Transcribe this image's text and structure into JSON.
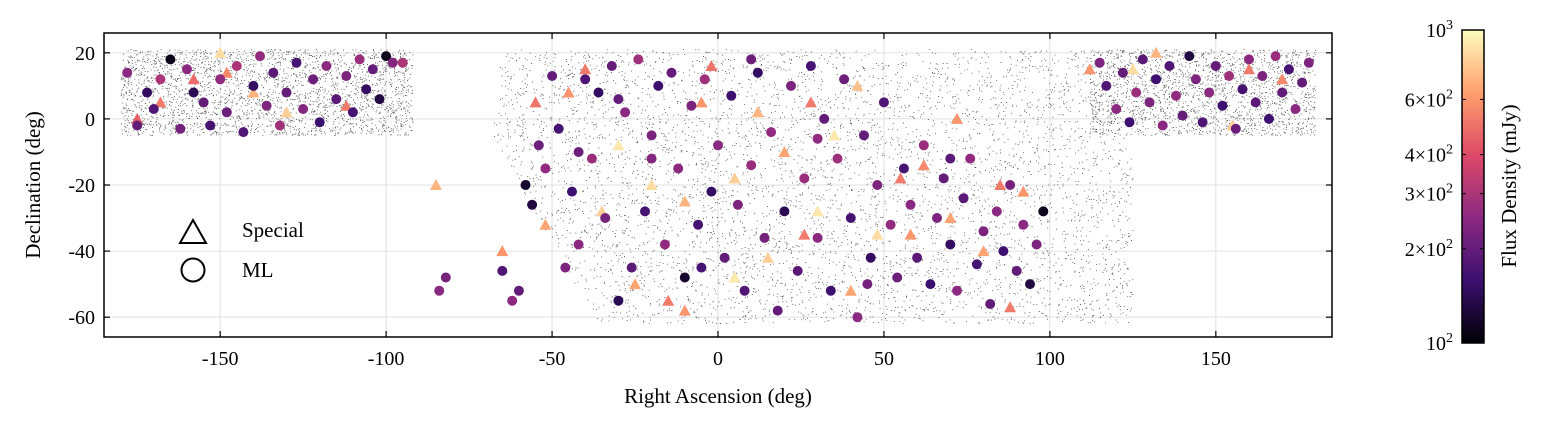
{
  "chart_data": {
    "type": "scatter",
    "xlabel": "Right Ascension (deg)",
    "ylabel": "Declination (deg)",
    "xlim": [
      -185,
      185
    ],
    "ylim": [
      -66,
      26
    ],
    "x_ticks": [
      -150,
      -100,
      -50,
      0,
      50,
      100,
      150
    ],
    "y_ticks": [
      20,
      0,
      -20,
      -40,
      -60
    ],
    "grid": true,
    "legend_position": "lower-left",
    "legend": [
      {
        "marker": "triangle",
        "label": "Special"
      },
      {
        "marker": "circle",
        "label": "ML"
      }
    ],
    "colorbar": {
      "label": "Flux Density (mJy)",
      "scale": "log",
      "range": [
        100,
        1000
      ],
      "colormap": "magma",
      "major_ticks": [
        {
          "value": 1000,
          "base": "10",
          "exp": "3"
        },
        {
          "value": 100,
          "base": "10",
          "exp": "2"
        }
      ],
      "minor_ticks": [
        {
          "value": 600,
          "base": "6×10",
          "exp": "2"
        },
        {
          "value": 400,
          "base": "4×10",
          "exp": "2"
        },
        {
          "value": 300,
          "base": "3×10",
          "exp": "2"
        },
        {
          "value": 200,
          "base": "2×10",
          "exp": "2"
        }
      ],
      "colors": [
        "#000004",
        "#3b0f70",
        "#8c2981",
        "#de4968",
        "#fe9f6d",
        "#fcfdbf"
      ]
    },
    "series": [
      {
        "name": "Special",
        "marker": "triangle",
        "points": [
          [
            -175,
            0,
            450
          ],
          [
            -168,
            5,
            520
          ],
          [
            -150,
            20,
            850
          ],
          [
            -148,
            14,
            560
          ],
          [
            -140,
            8,
            700
          ],
          [
            -130,
            2,
            800
          ],
          [
            -158,
            12,
            480
          ],
          [
            -112,
            4,
            520
          ],
          [
            -55,
            5,
            500
          ],
          [
            -45,
            8,
            600
          ],
          [
            -40,
            15,
            520
          ],
          [
            -30,
            -8,
            900
          ],
          [
            -20,
            -20,
            850
          ],
          [
            -10,
            -25,
            700
          ],
          [
            -5,
            5,
            600
          ],
          [
            -2,
            16,
            500
          ],
          [
            5,
            -18,
            800
          ],
          [
            12,
            2,
            700
          ],
          [
            20,
            -10,
            650
          ],
          [
            28,
            5,
            520
          ],
          [
            35,
            -5,
            900
          ],
          [
            42,
            10,
            750
          ],
          [
            55,
            -18,
            520
          ],
          [
            58,
            -35,
            600
          ],
          [
            62,
            -14,
            560
          ],
          [
            70,
            -30,
            650
          ],
          [
            72,
            0,
            600
          ],
          [
            85,
            -20,
            520
          ],
          [
            88,
            -57,
            520
          ],
          [
            92,
            -22,
            600
          ],
          [
            -65,
            -40,
            600
          ],
          [
            -52,
            -32,
            650
          ],
          [
            -15,
            -55,
            520
          ],
          [
            15,
            -42,
            800
          ],
          [
            30,
            -28,
            900
          ],
          [
            40,
            -52,
            650
          ],
          [
            112,
            15,
            600
          ],
          [
            125,
            15,
            850
          ],
          [
            132,
            20,
            700
          ],
          [
            155,
            -2,
            800
          ],
          [
            160,
            15,
            520
          ],
          [
            170,
            12,
            560
          ],
          [
            -10,
            -58,
            600
          ],
          [
            48,
            -35,
            850
          ],
          [
            80,
            -40,
            650
          ],
          [
            -35,
            -28,
            800
          ],
          [
            26,
            -35,
            520
          ],
          [
            -85,
            -20,
            700
          ],
          [
            -25,
            -50,
            650
          ],
          [
            5,
            -48,
            900
          ]
        ]
      },
      {
        "name": "ML",
        "marker": "circle",
        "points": [
          [
            -178,
            14,
            250
          ],
          [
            -175,
            -2,
            200
          ],
          [
            -172,
            8,
            150
          ],
          [
            -170,
            3,
            180
          ],
          [
            -168,
            12,
            300
          ],
          [
            -165,
            18,
            110
          ],
          [
            -162,
            -3,
            220
          ],
          [
            -160,
            15,
            250
          ],
          [
            -158,
            8,
            140
          ],
          [
            -155,
            5,
            200
          ],
          [
            -153,
            -2,
            170
          ],
          [
            -150,
            12,
            260
          ],
          [
            -148,
            2,
            210
          ],
          [
            -145,
            16,
            300
          ],
          [
            -143,
            -4,
            180
          ],
          [
            -140,
            10,
            150
          ],
          [
            -138,
            19,
            260
          ],
          [
            -136,
            4,
            230
          ],
          [
            -134,
            14,
            190
          ],
          [
            -132,
            -2,
            280
          ],
          [
            -130,
            8,
            200
          ],
          [
            -127,
            17,
            170
          ],
          [
            -125,
            3,
            240
          ],
          [
            -122,
            12,
            210
          ],
          [
            -120,
            -1,
            160
          ],
          [
            -118,
            16,
            250
          ],
          [
            -115,
            6,
            190
          ],
          [
            -112,
            13,
            230
          ],
          [
            -110,
            2,
            170
          ],
          [
            -108,
            18,
            270
          ],
          [
            -106,
            9,
            150
          ],
          [
            -104,
            15,
            200
          ],
          [
            -102,
            6,
            130
          ],
          [
            -100,
            19,
            110
          ],
          [
            -98,
            17,
            240
          ],
          [
            -95,
            17,
            300
          ],
          [
            -82,
            -48,
            220
          ],
          [
            -84,
            -52,
            250
          ],
          [
            -65,
            -46,
            180
          ],
          [
            -62,
            -55,
            250
          ],
          [
            -60,
            -52,
            200
          ],
          [
            -58,
            -20,
            120
          ],
          [
            -56,
            -26,
            130
          ],
          [
            -54,
            -8,
            210
          ],
          [
            -52,
            -15,
            260
          ],
          [
            -50,
            13,
            200
          ],
          [
            -48,
            -3,
            170
          ],
          [
            -46,
            -45,
            230
          ],
          [
            -44,
            -22,
            160
          ],
          [
            -42,
            -38,
            250
          ],
          [
            -40,
            12,
            180
          ],
          [
            -38,
            -12,
            270
          ],
          [
            -36,
            8,
            150
          ],
          [
            -34,
            -30,
            220
          ],
          [
            -32,
            16,
            200
          ],
          [
            -30,
            -55,
            140
          ],
          [
            -28,
            2,
            250
          ],
          [
            -26,
            -45,
            190
          ],
          [
            -24,
            18,
            280
          ],
          [
            -22,
            -28,
            170
          ],
          [
            -20,
            -5,
            230
          ],
          [
            -18,
            10,
            160
          ],
          [
            -16,
            -38,
            260
          ],
          [
            -14,
            14,
            200
          ],
          [
            -12,
            -15,
            250
          ],
          [
            -10,
            -48,
            120
          ],
          [
            -8,
            4,
            230
          ],
          [
            -6,
            -32,
            170
          ],
          [
            -4,
            12,
            280
          ],
          [
            -2,
            -22,
            150
          ],
          [
            0,
            -8,
            250
          ],
          [
            2,
            -42,
            200
          ],
          [
            4,
            7,
            160
          ],
          [
            6,
            -26,
            230
          ],
          [
            8,
            -52,
            180
          ],
          [
            10,
            -14,
            270
          ],
          [
            12,
            14,
            150
          ],
          [
            14,
            -36,
            220
          ],
          [
            16,
            -4,
            260
          ],
          [
            18,
            -58,
            200
          ],
          [
            20,
            -28,
            140
          ],
          [
            22,
            10,
            230
          ],
          [
            24,
            -46,
            190
          ],
          [
            26,
            -18,
            270
          ],
          [
            28,
            16,
            170
          ],
          [
            30,
            -36,
            250
          ],
          [
            32,
            0,
            200
          ],
          [
            34,
            -52,
            160
          ],
          [
            36,
            -12,
            280
          ],
          [
            38,
            12,
            210
          ],
          [
            40,
            -30,
            170
          ],
          [
            42,
            -60,
            250
          ],
          [
            44,
            -5,
            200
          ],
          [
            46,
            -42,
            150
          ],
          [
            48,
            -20,
            230
          ],
          [
            50,
            5,
            180
          ],
          [
            52,
            -32,
            260
          ],
          [
            54,
            -48,
            210
          ],
          [
            56,
            -15,
            170
          ],
          [
            58,
            -26,
            250
          ],
          [
            60,
            -42,
            190
          ],
          [
            62,
            -8,
            270
          ],
          [
            64,
            -50,
            160
          ],
          [
            66,
            -30,
            230
          ],
          [
            68,
            -18,
            200
          ],
          [
            70,
            -38,
            150
          ],
          [
            72,
            -52,
            250
          ],
          [
            74,
            -24,
            190
          ],
          [
            76,
            -12,
            260
          ],
          [
            78,
            -44,
            170
          ],
          [
            80,
            -34,
            230
          ],
          [
            82,
            -56,
            200
          ],
          [
            84,
            -28,
            250
          ],
          [
            86,
            -40,
            160
          ],
          [
            88,
            -20,
            220
          ],
          [
            90,
            -46,
            200
          ],
          [
            92,
            -32,
            250
          ],
          [
            94,
            -50,
            130
          ],
          [
            96,
            -38,
            230
          ],
          [
            98,
            -28,
            110
          ],
          [
            115,
            17,
            230
          ],
          [
            117,
            10,
            180
          ],
          [
            120,
            3,
            250
          ],
          [
            122,
            14,
            200
          ],
          [
            124,
            -1,
            160
          ],
          [
            126,
            8,
            270
          ],
          [
            128,
            18,
            190
          ],
          [
            130,
            5,
            230
          ],
          [
            132,
            12,
            160
          ],
          [
            134,
            -2,
            250
          ],
          [
            136,
            16,
            180
          ],
          [
            138,
            7,
            260
          ],
          [
            140,
            1,
            200
          ],
          [
            142,
            19,
            130
          ],
          [
            144,
            12,
            230
          ],
          [
            146,
            -1,
            180
          ],
          [
            148,
            8,
            250
          ],
          [
            150,
            16,
            200
          ],
          [
            152,
            4,
            160
          ],
          [
            154,
            13,
            280
          ],
          [
            156,
            -3,
            210
          ],
          [
            158,
            9,
            170
          ],
          [
            160,
            18,
            250
          ],
          [
            162,
            5,
            190
          ],
          [
            164,
            13,
            230
          ],
          [
            166,
            0,
            160
          ],
          [
            168,
            19,
            270
          ],
          [
            170,
            8,
            200
          ],
          [
            172,
            15,
            170
          ],
          [
            174,
            3,
            250
          ],
          [
            176,
            11,
            200
          ],
          [
            178,
            17,
            230
          ],
          [
            -20,
            -12,
            240
          ],
          [
            10,
            18,
            210
          ],
          [
            30,
            -6,
            260
          ],
          [
            -42,
            -10,
            210
          ],
          [
            70,
            -12,
            190
          ],
          [
            -5,
            -45,
            170
          ],
          [
            45,
            -50,
            220
          ],
          [
            -30,
            6,
            200
          ]
        ]
      }
    ]
  }
}
